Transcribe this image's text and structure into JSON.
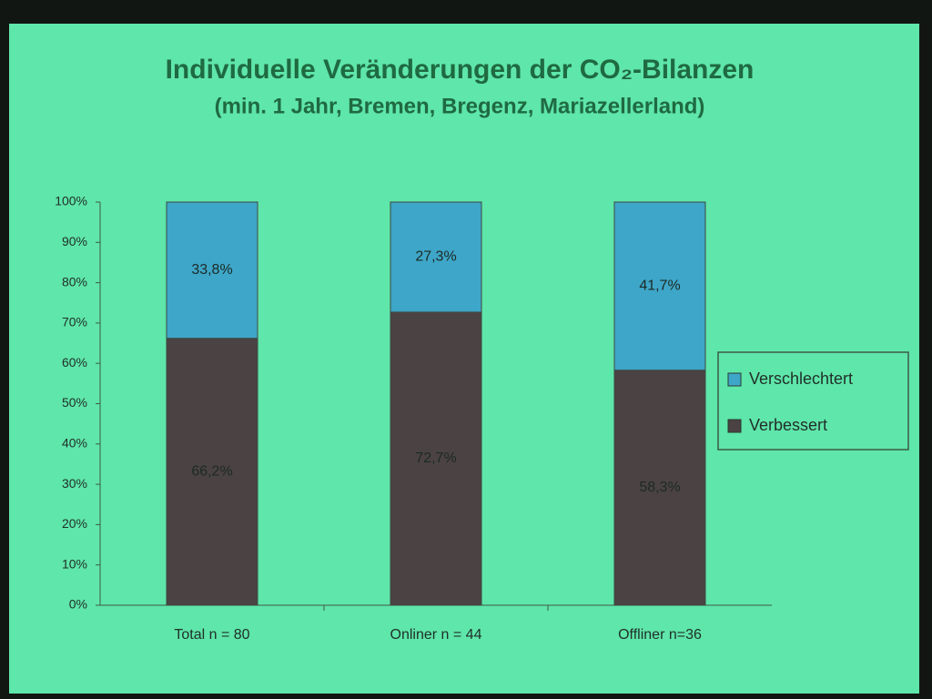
{
  "chart_data": {
    "type": "stacked_bar",
    "title": "Individuelle Veränderungen der CO₂-Bilanzen",
    "subtitle": "(min. 1 Jahr, Bremen, Bregenz, Mariazellerland)",
    "categories": [
      "Total n = 80",
      "Onliner n = 44",
      "Offliner n=36"
    ],
    "series": [
      {
        "name": "Verbessert",
        "color": "#4b4244",
        "values": [
          66.2,
          72.7,
          58.3
        ],
        "value_labels": [
          "66,2%",
          "72,7%",
          "58,3%"
        ]
      },
      {
        "name": "Verschlechtert",
        "color": "#3ea6c8",
        "values": [
          33.8,
          27.3,
          41.7
        ],
        "value_labels": [
          "33,8%",
          "27,3%",
          "41,7%"
        ]
      }
    ],
    "ylim": [
      0,
      100
    ],
    "yticks": [
      {
        "value": 0,
        "label": "0%"
      },
      {
        "value": 10,
        "label": "10%"
      },
      {
        "value": 20,
        "label": "20%"
      },
      {
        "value": 30,
        "label": "30%"
      },
      {
        "value": 40,
        "label": "40%"
      },
      {
        "value": 50,
        "label": "50%"
      },
      {
        "value": 60,
        "label": "60%"
      },
      {
        "value": 70,
        "label": "70%"
      },
      {
        "value": 80,
        "label": "80%"
      },
      {
        "value": 90,
        "label": "90%"
      },
      {
        "value": 100,
        "label": "100%"
      }
    ],
    "legend": "right"
  }
}
